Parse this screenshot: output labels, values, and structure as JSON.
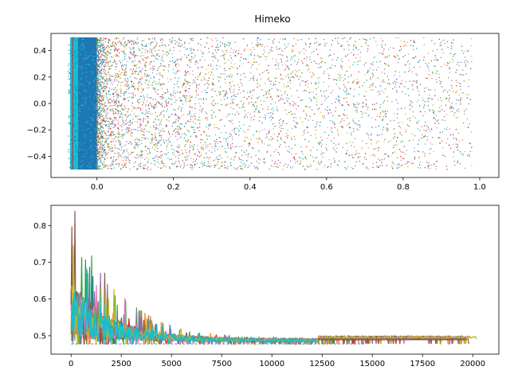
{
  "chart_data": [
    {
      "type": "scatter",
      "title": "Himeko",
      "xlabel": "",
      "ylabel": "",
      "xlim": [
        -0.12,
        1.05
      ],
      "ylim": [
        -0.56,
        0.53
      ],
      "x_ticks": [
        0.0,
        0.2,
        0.4,
        0.6,
        0.8,
        1.0
      ],
      "x_tick_labels": [
        "0.0",
        "0.2",
        "0.4",
        "0.6",
        "0.8",
        "1.0"
      ],
      "y_ticks": [
        -0.4,
        -0.2,
        0.0,
        0.2,
        0.4
      ],
      "y_tick_labels": [
        "−0.4",
        "−0.2",
        "0.0",
        "0.2",
        "0.4"
      ],
      "grid": false,
      "colors": [
        "#1f77b4",
        "#ff7f0e",
        "#2ca02c",
        "#d62728",
        "#9467bd",
        "#8c564b",
        "#e377c2",
        "#7f7f7f",
        "#bcbd22",
        "#17becf"
      ],
      "series_summary": {
        "x_range": [
          -0.07,
          0.98
        ],
        "y_range": [
          -0.5,
          0.5
        ],
        "dense_band_x": [
          -0.05,
          0.0
        ]
      }
    },
    {
      "type": "line",
      "title": "",
      "xlabel": "",
      "ylabel": "",
      "xlim": [
        -1000,
        21300
      ],
      "ylim": [
        0.45,
        0.855
      ],
      "x_ticks": [
        0,
        2500,
        5000,
        7500,
        10000,
        12500,
        15000,
        17500,
        20000
      ],
      "x_tick_labels": [
        "0",
        "2500",
        "5000",
        "7500",
        "10000",
        "12500",
        "15000",
        "17500",
        "20000"
      ],
      "y_ticks": [
        0.5,
        0.6,
        0.7,
        0.8
      ],
      "y_tick_labels": [
        "0.5",
        "0.6",
        "0.7",
        "0.8"
      ],
      "grid": false,
      "colors": [
        "#1f77b4",
        "#ff7f0e",
        "#2ca02c",
        "#d62728",
        "#9467bd",
        "#8c564b",
        "#e377c2",
        "#7f7f7f",
        "#bcbd22",
        "#17becf"
      ],
      "series_summary": {
        "x_range": [
          0,
          20200
        ],
        "start_peak": 0.84,
        "plateau": 0.495,
        "floor": 0.478,
        "series_end_x": [
          12300,
          14500,
          14400,
          19700,
          19600,
          19800,
          19900,
          19500,
          20200,
          12200
        ]
      }
    }
  ]
}
